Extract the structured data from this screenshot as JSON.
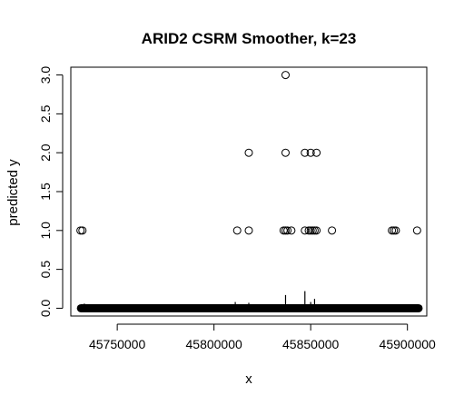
{
  "chart_data": {
    "type": "scatter",
    "title": "ARID2 CSRM Smoother, k=23",
    "xlabel": "x",
    "ylabel": "predicted y",
    "xlim": [
      45726000,
      45910000
    ],
    "ylim": [
      -0.1,
      3.1
    ],
    "x_ticks": [
      45750000,
      45800000,
      45850000,
      45900000
    ],
    "x_tick_labels": [
      "45750000",
      "45800000",
      "45850000",
      "45900000"
    ],
    "y_ticks": [
      0.0,
      0.5,
      1.0,
      1.5,
      2.0,
      2.5,
      3.0
    ],
    "y_tick_labels": [
      "0.0",
      "0.5",
      "1.0",
      "1.5",
      "2.0",
      "2.5",
      "3.0"
    ],
    "grid": false,
    "marker": "open-circle",
    "zero_band": {
      "y": 0,
      "x_from": 45731000,
      "x_to": 45906000
    },
    "series": [
      {
        "points": [
          [
            45837000,
            3
          ],
          [
            45818000,
            2
          ],
          [
            45837000,
            2
          ],
          [
            45847000,
            2
          ],
          [
            45850000,
            2
          ],
          [
            45853000,
            2
          ],
          [
            45731000,
            1
          ],
          [
            45732000,
            1
          ],
          [
            45812000,
            1
          ],
          [
            45818000,
            1
          ],
          [
            45836000,
            1
          ],
          [
            45837000,
            1
          ],
          [
            45838000,
            1
          ],
          [
            45840000,
            1
          ],
          [
            45847000,
            1
          ],
          [
            45849000,
            1
          ],
          [
            45850000,
            1
          ],
          [
            45851000,
            1
          ],
          [
            45852000,
            1
          ],
          [
            45853000,
            1
          ],
          [
            45861000,
            1
          ],
          [
            45892000,
            1
          ],
          [
            45893000,
            1
          ],
          [
            45894000,
            1
          ],
          [
            45905000,
            1
          ]
        ]
      }
    ],
    "spikes": [
      {
        "x": 45733000,
        "y": 0.06
      },
      {
        "x": 45811000,
        "y": 0.08
      },
      {
        "x": 45818000,
        "y": 0.07
      },
      {
        "x": 45837000,
        "y": 0.17
      },
      {
        "x": 45847000,
        "y": 0.22
      },
      {
        "x": 45850000,
        "y": 0.08
      },
      {
        "x": 45852000,
        "y": 0.12
      },
      {
        "x": 45905000,
        "y": 0.05
      }
    ]
  }
}
